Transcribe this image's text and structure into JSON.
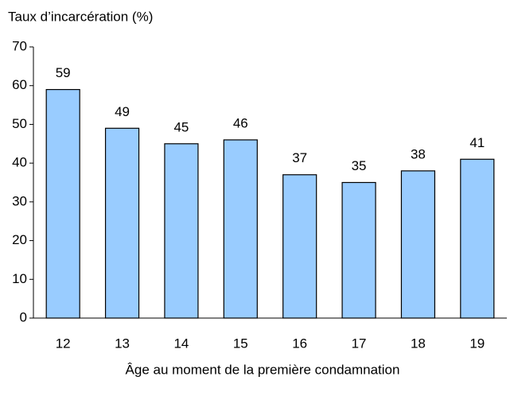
{
  "chart_data": {
    "type": "bar",
    "y_axis_label": "Taux d’incarcération (%)",
    "x_axis_label": "Âge au moment de la première condamnation",
    "categories": [
      "12",
      "13",
      "14",
      "15",
      "16",
      "17",
      "18",
      "19"
    ],
    "values": [
      59,
      49,
      45,
      46,
      37,
      35,
      38,
      41
    ],
    "color": "#99ccff",
    "ylim": [
      0,
      70
    ],
    "yticks": [
      0,
      10,
      20,
      30,
      40,
      50,
      60,
      70
    ],
    "grid": false
  }
}
